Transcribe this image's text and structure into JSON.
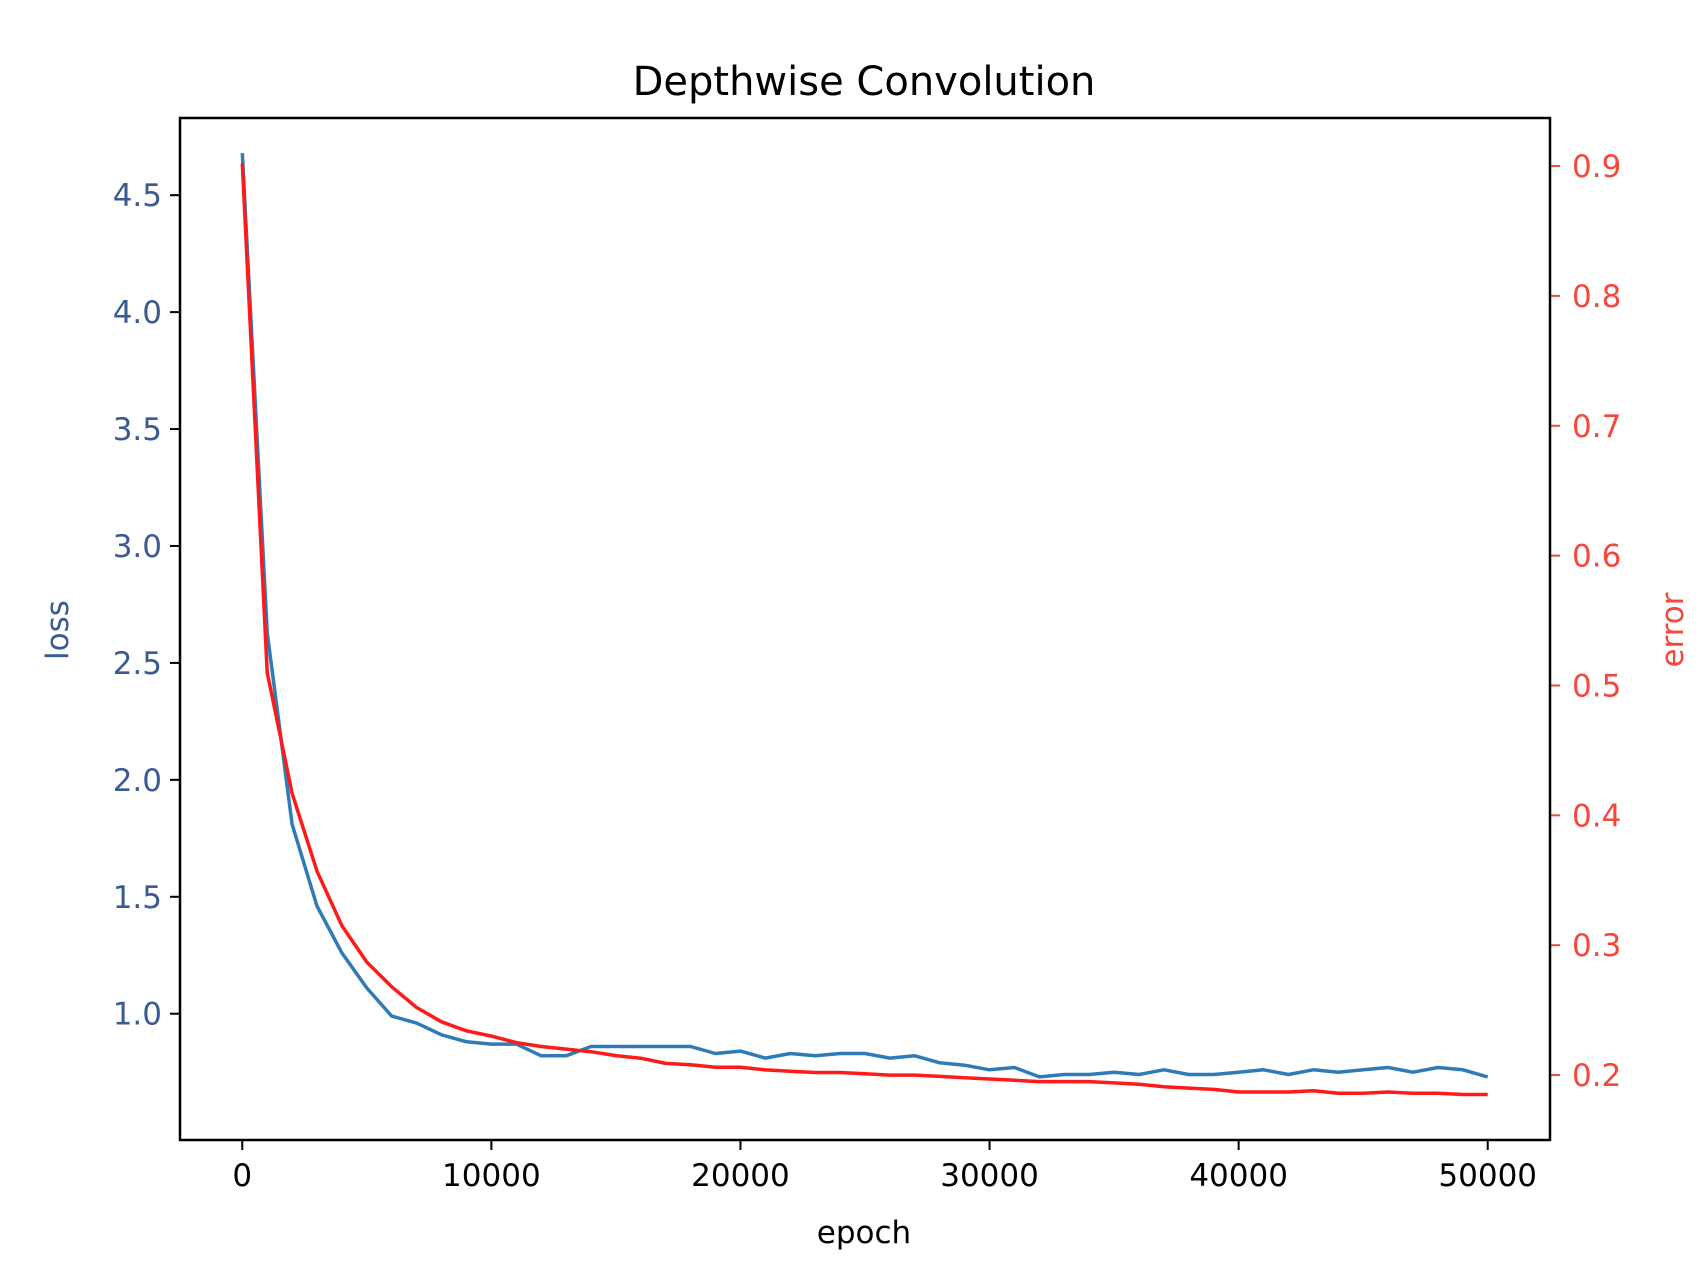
{
  "chart_data": {
    "type": "line",
    "title": "Depthwise Convolution",
    "xlabel": "epoch",
    "ylabel_left": "loss",
    "ylabel_right": "error",
    "xlim": [
      -2500,
      52500
    ],
    "ylim_left": [
      0.46,
      4.83
    ],
    "ylim_right": [
      0.15,
      0.937
    ],
    "xticks": [
      0,
      10000,
      20000,
      30000,
      40000,
      50000
    ],
    "yticks_left": [
      1.0,
      1.5,
      2.0,
      2.5,
      3.0,
      3.5,
      4.0,
      4.5
    ],
    "yticks_right": [
      0.2,
      0.3,
      0.4,
      0.5,
      0.6,
      0.7,
      0.8,
      0.9
    ],
    "grid": false,
    "colors": {
      "loss_line": "#2e7bb8",
      "error_line": "#ff1a1a",
      "left_axis_text": "#3a5a92",
      "right_axis_text": "#f5473b",
      "axes": "#000000"
    },
    "x": [
      0,
      1000,
      2000,
      3000,
      4000,
      5000,
      6000,
      7000,
      8000,
      9000,
      10000,
      11000,
      12000,
      13000,
      14000,
      15000,
      16000,
      17000,
      18000,
      19000,
      20000,
      21000,
      22000,
      23000,
      24000,
      25000,
      26000,
      27000,
      28000,
      29000,
      30000,
      31000,
      32000,
      33000,
      34000,
      35000,
      36000,
      37000,
      38000,
      39000,
      40000,
      41000,
      42000,
      43000,
      44000,
      45000,
      46000,
      47000,
      48000,
      49000,
      50000
    ],
    "series": [
      {
        "axis": "left",
        "values": [
          4.68,
          2.63,
          1.81,
          1.46,
          1.26,
          1.11,
          0.99,
          0.96,
          0.91,
          0.88,
          0.87,
          0.87,
          0.82,
          0.82,
          0.86,
          0.86,
          0.86,
          0.86,
          0.86,
          0.83,
          0.84,
          0.81,
          0.83,
          0.82,
          0.83,
          0.83,
          0.81,
          0.82,
          0.79,
          0.78,
          0.76,
          0.77,
          0.73,
          0.74,
          0.74,
          0.75,
          0.74,
          0.76,
          0.74,
          0.74,
          0.75,
          0.76,
          0.74,
          0.76,
          0.75,
          0.76,
          0.77,
          0.75,
          0.77,
          0.76,
          0.73
        ]
      },
      {
        "axis": "right",
        "values": [
          0.902,
          0.51,
          0.417,
          0.357,
          0.315,
          0.287,
          0.268,
          0.252,
          0.241,
          0.234,
          0.23,
          0.225,
          0.222,
          0.22,
          0.218,
          0.215,
          0.213,
          0.209,
          0.208,
          0.206,
          0.206,
          0.204,
          0.203,
          0.202,
          0.202,
          0.201,
          0.2,
          0.2,
          0.199,
          0.198,
          0.197,
          0.196,
          0.195,
          0.195,
          0.195,
          0.194,
          0.193,
          0.191,
          0.19,
          0.189,
          0.187,
          0.187,
          0.187,
          0.188,
          0.186,
          0.186,
          0.187,
          0.186,
          0.186,
          0.185,
          0.185
        ]
      }
    ]
  }
}
